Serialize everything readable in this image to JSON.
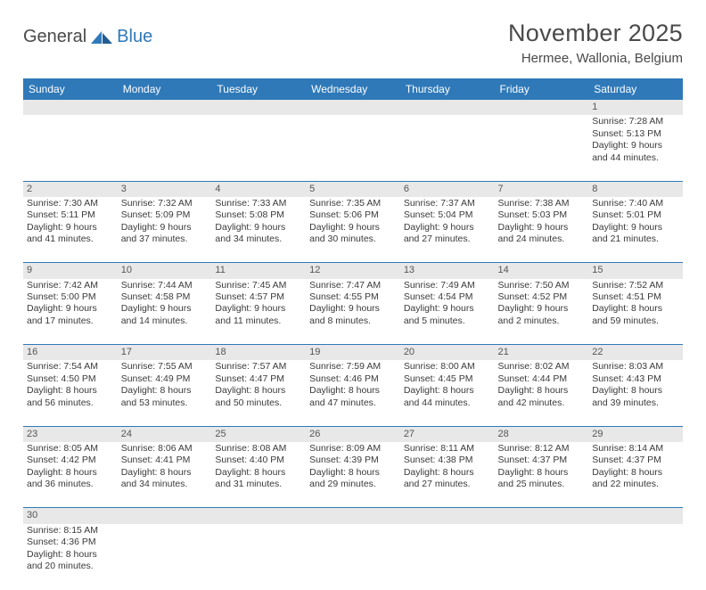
{
  "logo": {
    "part1": "General",
    "part2": "Blue"
  },
  "title": "November 2025",
  "location": "Hermee, Wallonia, Belgium",
  "weekdays": [
    "Sunday",
    "Monday",
    "Tuesday",
    "Wednesday",
    "Thursday",
    "Friday",
    "Saturday"
  ],
  "colors": {
    "header_bg": "#2f79b9",
    "header_text": "#ffffff",
    "daynum_bg": "#e8e8e8",
    "cell_border": "#2f79b9",
    "text": "#3a3a3a",
    "title_text": "#4a4a4a"
  },
  "weeks": [
    {
      "days": [
        {
          "n": "",
          "lines": []
        },
        {
          "n": "",
          "lines": []
        },
        {
          "n": "",
          "lines": []
        },
        {
          "n": "",
          "lines": []
        },
        {
          "n": "",
          "lines": []
        },
        {
          "n": "",
          "lines": []
        },
        {
          "n": "1",
          "lines": [
            "Sunrise: 7:28 AM",
            "Sunset: 5:13 PM",
            "Daylight: 9 hours",
            "and 44 minutes."
          ]
        }
      ]
    },
    {
      "days": [
        {
          "n": "2",
          "lines": [
            "Sunrise: 7:30 AM",
            "Sunset: 5:11 PM",
            "Daylight: 9 hours",
            "and 41 minutes."
          ]
        },
        {
          "n": "3",
          "lines": [
            "Sunrise: 7:32 AM",
            "Sunset: 5:09 PM",
            "Daylight: 9 hours",
            "and 37 minutes."
          ]
        },
        {
          "n": "4",
          "lines": [
            "Sunrise: 7:33 AM",
            "Sunset: 5:08 PM",
            "Daylight: 9 hours",
            "and 34 minutes."
          ]
        },
        {
          "n": "5",
          "lines": [
            "Sunrise: 7:35 AM",
            "Sunset: 5:06 PM",
            "Daylight: 9 hours",
            "and 30 minutes."
          ]
        },
        {
          "n": "6",
          "lines": [
            "Sunrise: 7:37 AM",
            "Sunset: 5:04 PM",
            "Daylight: 9 hours",
            "and 27 minutes."
          ]
        },
        {
          "n": "7",
          "lines": [
            "Sunrise: 7:38 AM",
            "Sunset: 5:03 PM",
            "Daylight: 9 hours",
            "and 24 minutes."
          ]
        },
        {
          "n": "8",
          "lines": [
            "Sunrise: 7:40 AM",
            "Sunset: 5:01 PM",
            "Daylight: 9 hours",
            "and 21 minutes."
          ]
        }
      ]
    },
    {
      "days": [
        {
          "n": "9",
          "lines": [
            "Sunrise: 7:42 AM",
            "Sunset: 5:00 PM",
            "Daylight: 9 hours",
            "and 17 minutes."
          ]
        },
        {
          "n": "10",
          "lines": [
            "Sunrise: 7:44 AM",
            "Sunset: 4:58 PM",
            "Daylight: 9 hours",
            "and 14 minutes."
          ]
        },
        {
          "n": "11",
          "lines": [
            "Sunrise: 7:45 AM",
            "Sunset: 4:57 PM",
            "Daylight: 9 hours",
            "and 11 minutes."
          ]
        },
        {
          "n": "12",
          "lines": [
            "Sunrise: 7:47 AM",
            "Sunset: 4:55 PM",
            "Daylight: 9 hours",
            "and 8 minutes."
          ]
        },
        {
          "n": "13",
          "lines": [
            "Sunrise: 7:49 AM",
            "Sunset: 4:54 PM",
            "Daylight: 9 hours",
            "and 5 minutes."
          ]
        },
        {
          "n": "14",
          "lines": [
            "Sunrise: 7:50 AM",
            "Sunset: 4:52 PM",
            "Daylight: 9 hours",
            "and 2 minutes."
          ]
        },
        {
          "n": "15",
          "lines": [
            "Sunrise: 7:52 AM",
            "Sunset: 4:51 PM",
            "Daylight: 8 hours",
            "and 59 minutes."
          ]
        }
      ]
    },
    {
      "days": [
        {
          "n": "16",
          "lines": [
            "Sunrise: 7:54 AM",
            "Sunset: 4:50 PM",
            "Daylight: 8 hours",
            "and 56 minutes."
          ]
        },
        {
          "n": "17",
          "lines": [
            "Sunrise: 7:55 AM",
            "Sunset: 4:49 PM",
            "Daylight: 8 hours",
            "and 53 minutes."
          ]
        },
        {
          "n": "18",
          "lines": [
            "Sunrise: 7:57 AM",
            "Sunset: 4:47 PM",
            "Daylight: 8 hours",
            "and 50 minutes."
          ]
        },
        {
          "n": "19",
          "lines": [
            "Sunrise: 7:59 AM",
            "Sunset: 4:46 PM",
            "Daylight: 8 hours",
            "and 47 minutes."
          ]
        },
        {
          "n": "20",
          "lines": [
            "Sunrise: 8:00 AM",
            "Sunset: 4:45 PM",
            "Daylight: 8 hours",
            "and 44 minutes."
          ]
        },
        {
          "n": "21",
          "lines": [
            "Sunrise: 8:02 AM",
            "Sunset: 4:44 PM",
            "Daylight: 8 hours",
            "and 42 minutes."
          ]
        },
        {
          "n": "22",
          "lines": [
            "Sunrise: 8:03 AM",
            "Sunset: 4:43 PM",
            "Daylight: 8 hours",
            "and 39 minutes."
          ]
        }
      ]
    },
    {
      "days": [
        {
          "n": "23",
          "lines": [
            "Sunrise: 8:05 AM",
            "Sunset: 4:42 PM",
            "Daylight: 8 hours",
            "and 36 minutes."
          ]
        },
        {
          "n": "24",
          "lines": [
            "Sunrise: 8:06 AM",
            "Sunset: 4:41 PM",
            "Daylight: 8 hours",
            "and 34 minutes."
          ]
        },
        {
          "n": "25",
          "lines": [
            "Sunrise: 8:08 AM",
            "Sunset: 4:40 PM",
            "Daylight: 8 hours",
            "and 31 minutes."
          ]
        },
        {
          "n": "26",
          "lines": [
            "Sunrise: 8:09 AM",
            "Sunset: 4:39 PM",
            "Daylight: 8 hours",
            "and 29 minutes."
          ]
        },
        {
          "n": "27",
          "lines": [
            "Sunrise: 8:11 AM",
            "Sunset: 4:38 PM",
            "Daylight: 8 hours",
            "and 27 minutes."
          ]
        },
        {
          "n": "28",
          "lines": [
            "Sunrise: 8:12 AM",
            "Sunset: 4:37 PM",
            "Daylight: 8 hours",
            "and 25 minutes."
          ]
        },
        {
          "n": "29",
          "lines": [
            "Sunrise: 8:14 AM",
            "Sunset: 4:37 PM",
            "Daylight: 8 hours",
            "and 22 minutes."
          ]
        }
      ]
    },
    {
      "days": [
        {
          "n": "30",
          "lines": [
            "Sunrise: 8:15 AM",
            "Sunset: 4:36 PM",
            "Daylight: 8 hours",
            "and 20 minutes."
          ]
        },
        {
          "n": "",
          "lines": []
        },
        {
          "n": "",
          "lines": []
        },
        {
          "n": "",
          "lines": []
        },
        {
          "n": "",
          "lines": []
        },
        {
          "n": "",
          "lines": []
        },
        {
          "n": "",
          "lines": []
        }
      ]
    }
  ]
}
